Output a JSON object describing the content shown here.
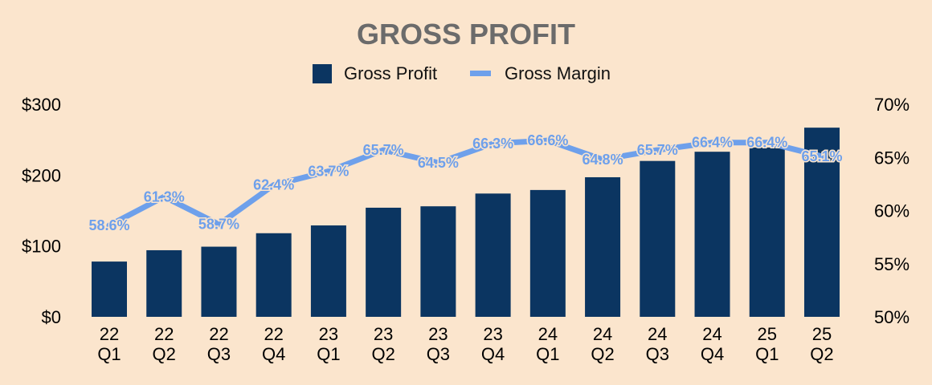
{
  "colors": {
    "background": "#fbe5cd",
    "bar": "#0b3561",
    "line": "#6ea0eb",
    "title": "#6b6b6b"
  },
  "chart_data": {
    "type": "bar",
    "title": "GROSS PROFIT",
    "legend": {
      "placement": "top-center",
      "items": [
        "Gross Profit",
        "Gross Margin"
      ]
    },
    "categories": [
      [
        "22",
        "Q1"
      ],
      [
        "22",
        "Q2"
      ],
      [
        "22",
        "Q3"
      ],
      [
        "22",
        "Q4"
      ],
      [
        "23",
        "Q1"
      ],
      [
        "23",
        "Q2"
      ],
      [
        "23",
        "Q3"
      ],
      [
        "23",
        "Q4"
      ],
      [
        "24",
        "Q1"
      ],
      [
        "24",
        "Q2"
      ],
      [
        "24",
        "Q3"
      ],
      [
        "24",
        "Q4"
      ],
      [
        "25",
        "Q1"
      ],
      [
        "25",
        "Q2"
      ]
    ],
    "series": [
      {
        "name": "Gross Profit",
        "type": "bar",
        "axis": "left",
        "values": [
          78,
          94,
          99,
          118,
          129,
          154,
          156,
          174,
          179,
          197,
          220,
          233,
          239,
          267
        ]
      },
      {
        "name": "Gross Margin",
        "type": "line",
        "axis": "right",
        "values": [
          58.6,
          61.3,
          58.7,
          62.4,
          63.7,
          65.7,
          64.5,
          66.3,
          66.6,
          64.8,
          65.7,
          66.4,
          66.4,
          65.1
        ],
        "labels": [
          "58.6%",
          "61.3%",
          "58.7%",
          "62.4%",
          "63.7%",
          "65.7%",
          "64.5%",
          "66.3%",
          "66.6%",
          "64.8%",
          "65.7%",
          "66.4%",
          "66.4%",
          "65.1%"
        ]
      }
    ],
    "y_left": {
      "min": 0,
      "max": 300,
      "ticks": [
        0,
        100,
        200,
        300
      ],
      "tick_labels": [
        "$0",
        "$100",
        "$200",
        "$300"
      ]
    },
    "y_right": {
      "min": 50,
      "max": 70,
      "ticks": [
        50,
        55,
        60,
        65,
        70
      ],
      "tick_labels": [
        "50%",
        "55%",
        "60%",
        "65%",
        "70%"
      ]
    },
    "grid": false
  }
}
